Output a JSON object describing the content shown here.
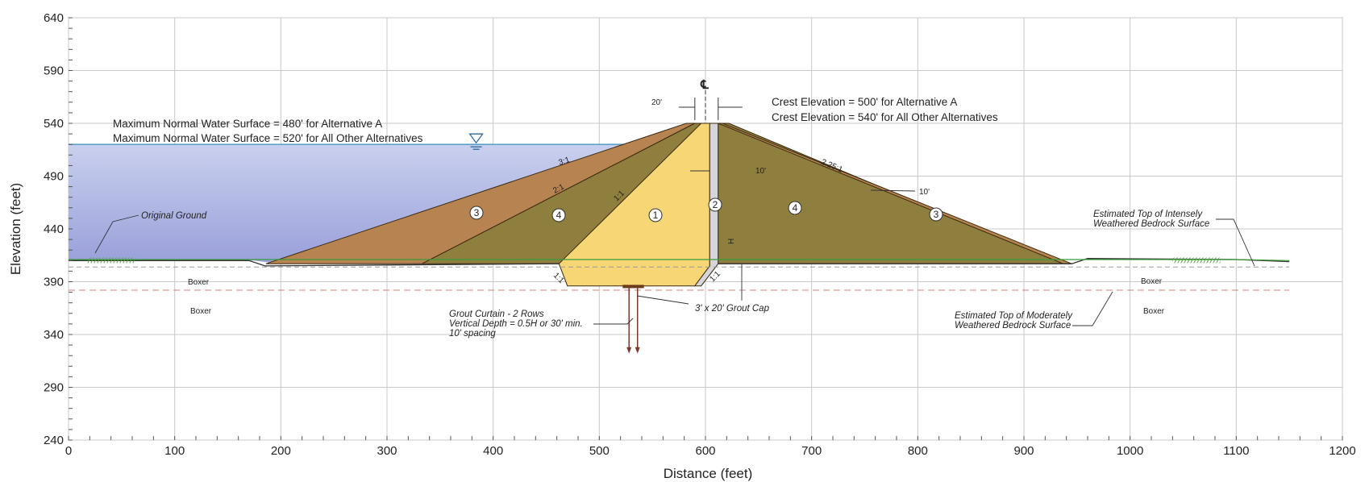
{
  "chart": {
    "xlabel": "Distance (feet)",
    "ylabel": "Elevation (feet)",
    "xlim": [
      0,
      1200
    ],
    "ylim": [
      240,
      640
    ],
    "x_ticks": [
      0,
      100,
      200,
      300,
      400,
      500,
      600,
      700,
      800,
      900,
      1000,
      1100,
      1200
    ],
    "y_ticks": [
      240,
      290,
      340,
      390,
      440,
      490,
      540,
      590,
      640
    ]
  },
  "water_surface": {
    "elevation": 520,
    "note_line1": "Maximum Normal Water Surface = 480' for Alternative A",
    "note_line2": "Maximum Normal Water Surface = 520' for All Other Alternatives"
  },
  "crest": {
    "note_line1": "Crest Elevation = 500' for Alternative A",
    "note_line2": "Crest Elevation = 540' for All Other Alternatives",
    "width_label": "20'",
    "centerline_label": "℄"
  },
  "slopes": {
    "upstream_outer": "3:1",
    "upstream_inner": "2:1",
    "core_upstream": "1:1",
    "downstream_outer": "2.25:1",
    "foundation_left": "1:1",
    "foundation_right": "1:1"
  },
  "dimensions": {
    "filter_width": "10'",
    "shell_thickness": "10'",
    "excavation_depth": "H"
  },
  "zones": {
    "z1": "1",
    "z2": "2",
    "z3_left": "3",
    "z4_left": "4",
    "z4_right": "4",
    "z3_right": "3"
  },
  "annotations": {
    "original_ground": "Original Ground",
    "boxer_1": "Boxer",
    "boxer_2": "Boxer",
    "boxer_3": "Boxer",
    "boxer_4": "Boxer",
    "grout_curtain_1": "Grout Curtain - 2 Rows",
    "grout_curtain_2": "Vertical Depth = 0.5H or 30' min.",
    "grout_curtain_3": "10' spacing",
    "grout_cap": "3' x 20' Grout Cap",
    "intense_1": "Estimated Top of Intensely",
    "intense_2": "Weathered Bedrock Surface",
    "moderate_1": "Estimated Top of Moderately",
    "moderate_2": "Weathered Bedrock Surface"
  },
  "colors": {
    "water": "#aeb4e2",
    "upstream_shell": "#b78350",
    "random_fill": "#8f7f3e",
    "core": "#f7d676",
    "filter": "#d4d6dc",
    "grid": "#c9c9c9",
    "ground": "#3a9a3a"
  }
}
